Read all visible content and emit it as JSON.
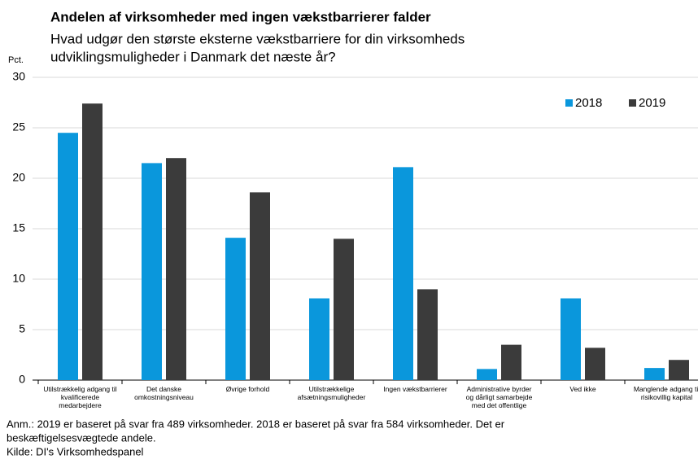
{
  "chart_data": {
    "type": "bar",
    "title": "Andelen af virksomheder med ingen vækstbarrierer falder",
    "subtitle": [
      "Hvad udgør den største eksterne vækstbarriere for din virksomheds",
      "udviklingsmuligheder i Danmark det næste år?"
    ],
    "y_label": "Pct.",
    "categories": [
      "Utilstrækkelig adgang til\nkvalificerede\nmedarbejdere",
      "Det danske\nomkostningsniveau",
      "Øvrige forhold",
      "Utilstrækkelige\nafsætningsmuligheder",
      "Ingen vækstbarrierer",
      "Administrative byrder\nog dårligt samarbejde\nmed det offentlige",
      "Ved ikke",
      "Manglende adgang til\nrisikovillig kapital"
    ],
    "series": [
      {
        "name": "2018",
        "color": "#0a97dc",
        "values": [
          24.5,
          21.5,
          14.1,
          8.1,
          21.1,
          1.1,
          8.1,
          1.2
        ]
      },
      {
        "name": "2019",
        "color": "#3b3b3b",
        "values": [
          27.4,
          22.0,
          18.6,
          14.0,
          9.0,
          3.5,
          3.2,
          2.0
        ]
      }
    ],
    "ylim": [
      0,
      30
    ],
    "yticks": [
      0,
      5,
      10,
      15,
      20,
      25,
      30
    ],
    "grid": true,
    "legend": "top-right",
    "notes": [
      "Anm.: 2019 er baseret på svar fra 489 virksomheder. 2018 er baseret på svar fra 584 virksomheder. Det er",
      "beskæftigelsesvægtede andele.",
      "Kilde: DI's Virksomhedspanel"
    ]
  }
}
